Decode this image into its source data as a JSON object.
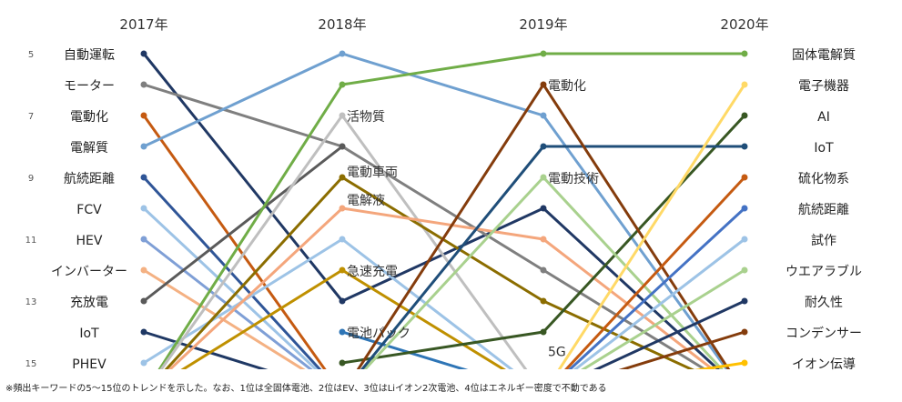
{
  "chart_data": {
    "type": "line",
    "title": "",
    "x": [
      "2017年",
      "2018年",
      "2019年",
      "2020年"
    ],
    "y_ticks": [
      "5",
      "7",
      "9",
      "11",
      "13",
      "15"
    ],
    "ylim": [
      5,
      15
    ],
    "y_inverted": true,
    "grid": false,
    "legend": "none",
    "left_labels": [
      {
        "label": "自動運転",
        "rank": 5
      },
      {
        "label": "モーター",
        "rank": 6
      },
      {
        "label": "電動化",
        "rank": 7
      },
      {
        "label": "電解質",
        "rank": 8
      },
      {
        "label": "航続距離",
        "rank": 9
      },
      {
        "label": "FCV",
        "rank": 10
      },
      {
        "label": "HEV",
        "rank": 11
      },
      {
        "label": "インバーター",
        "rank": 12
      },
      {
        "label": "充放電",
        "rank": 13
      },
      {
        "label": "IoT",
        "rank": 14
      },
      {
        "label": "PHEV",
        "rank": 15
      }
    ],
    "right_labels": [
      {
        "label": "固体電解質",
        "rank": 5
      },
      {
        "label": "電子機器",
        "rank": 6
      },
      {
        "label": "AI",
        "rank": 7
      },
      {
        "label": "IoT",
        "rank": 8
      },
      {
        "label": "硫化物系",
        "rank": 9
      },
      {
        "label": "航続距離",
        "rank": 10
      },
      {
        "label": "試作",
        "rank": 11
      },
      {
        "label": "ウエアラブル",
        "rank": 12
      },
      {
        "label": "耐久性",
        "rank": 13
      },
      {
        "label": "コンデンサー",
        "rank": 14
      },
      {
        "label": "イオン伝導",
        "rank": 15
      }
    ],
    "annotations": [
      {
        "label": "活物質",
        "x": "2018年",
        "rank": 7
      },
      {
        "label": "電動車両",
        "x": "2018年",
        "rank": 8.8
      },
      {
        "label": "電解液",
        "x": "2018年",
        "rank": 9.7
      },
      {
        "label": "急速充電",
        "x": "2018年",
        "rank": 12
      },
      {
        "label": "電池パック",
        "x": "2018年",
        "rank": 14
      },
      {
        "label": "電動化",
        "x": "2019年",
        "rank": 6
      },
      {
        "label": "電動技術",
        "x": "2019年",
        "rank": 9
      },
      {
        "label": "5G",
        "x": "2019年",
        "rank": 14.6
      }
    ],
    "series": [
      {
        "color": "#203864",
        "values": [
          5,
          13,
          10,
          16
        ]
      },
      {
        "color": "#7f7f7f",
        "values": [
          6,
          8,
          12,
          16
        ]
      },
      {
        "color": "#c55a11",
        "values": [
          7,
          16,
          null,
          null
        ]
      },
      {
        "color": "#6fa0d0",
        "values": [
          8,
          5,
          7,
          16
        ]
      },
      {
        "color": "#2f5597",
        "values": [
          9,
          16,
          null,
          null
        ]
      },
      {
        "color": "#9dc3e6",
        "values": [
          10,
          16,
          null,
          null
        ]
      },
      {
        "color": "#7f9fd6",
        "values": [
          11,
          16,
          null,
          null
        ]
      },
      {
        "color": "#f4b183",
        "values": [
          12,
          16,
          null,
          null
        ]
      },
      {
        "color": "#5a5a5a",
        "values": [
          13,
          8,
          null,
          null
        ]
      },
      {
        "color": "#1f3864",
        "values": [
          14,
          16,
          null,
          null
        ]
      },
      {
        "color": "#9dc3e6",
        "values": [
          15,
          11,
          16,
          null
        ]
      },
      {
        "color": "#70ad47",
        "values": [
          16,
          6,
          5,
          5
        ]
      },
      {
        "color": "#bfbfbf",
        "values": [
          16,
          7,
          16,
          null
        ]
      },
      {
        "color": "#8b6d00",
        "values": [
          16,
          9,
          13,
          16
        ]
      },
      {
        "color": "#f4a67c",
        "values": [
          16,
          10,
          11,
          16
        ]
      },
      {
        "color": "#bf9000",
        "values": [
          16,
          12,
          16,
          null
        ]
      },
      {
        "color": "#2e75b6",
        "values": [
          null,
          14,
          16,
          null
        ]
      },
      {
        "color": "#385723",
        "values": [
          null,
          15,
          14,
          7
        ]
      },
      {
        "color": "#a9d18e",
        "values": [
          null,
          16,
          9,
          16
        ]
      },
      {
        "color": "#1f4e79",
        "values": [
          null,
          16,
          8,
          8
        ]
      },
      {
        "color": "#843c0c",
        "values": [
          null,
          16,
          6,
          16
        ]
      },
      {
        "color": "#ffd966",
        "values": [
          null,
          null,
          16,
          6
        ]
      },
      {
        "color": "#4472c4",
        "values": [
          null,
          null,
          16,
          10
        ]
      },
      {
        "color": "#c55a11",
        "values": [
          null,
          null,
          16,
          9
        ]
      },
      {
        "color": "#9dc3e6",
        "values": [
          null,
          null,
          16,
          11
        ]
      },
      {
        "color": "#a9d18e",
        "values": [
          null,
          null,
          16,
          12
        ]
      },
      {
        "color": "#203864",
        "values": [
          null,
          null,
          16,
          13
        ]
      },
      {
        "color": "#843c0c",
        "values": [
          null,
          null,
          16,
          14
        ]
      },
      {
        "color": "#ffc000",
        "values": [
          null,
          null,
          16,
          15
        ]
      }
    ]
  },
  "footnote": "※頻出キーワードの5～15位のトレンドを示した。なお、1位は全固体電池、2位はEV、3位はLiイオン2次電池、4位はエネルギー密度で不動である"
}
